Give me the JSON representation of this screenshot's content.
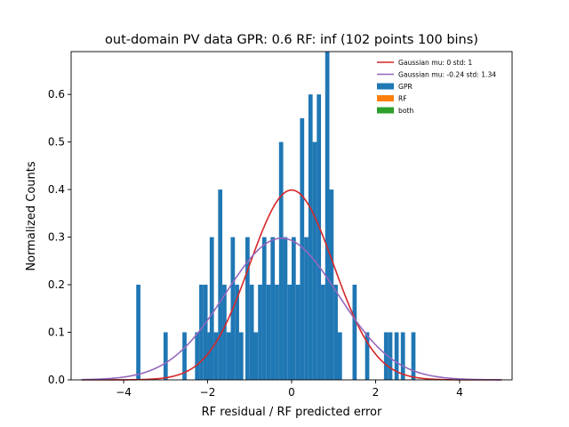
{
  "chart_data": {
    "type": "bar",
    "title": "out-domain PV data GPR: 0.6 RF: inf (102 points 100 bins)",
    "xlabel": "RF residual / RF predicted error",
    "ylabel": "Normalized Counts",
    "xlim": [
      -5.25,
      5.25
    ],
    "ylim": [
      0,
      0.69
    ],
    "xticks": [
      -4,
      -2,
      0,
      2,
      4
    ],
    "xtick_labels": [
      "−4",
      "−2",
      "0",
      "2",
      "4"
    ],
    "yticks": [
      0.0,
      0.1,
      0.2,
      0.3,
      0.4,
      0.5,
      0.6
    ],
    "ytick_labels": [
      "0.0",
      "0.1",
      "0.2",
      "0.3",
      "0.4",
      "0.5",
      "0.6"
    ],
    "grid": false,
    "legend_position": "top-right",
    "bin_width": 0.1,
    "series": [
      {
        "name": "GPR",
        "color": "#1f77b4",
        "kind": "histogram",
        "bins": [
          {
            "left": -3.7,
            "value": 0.2
          },
          {
            "left": -3.05,
            "value": 0.1
          },
          {
            "left": -2.6,
            "value": 0.1
          },
          {
            "left": -2.3,
            "value": 0.1
          },
          {
            "left": -2.2,
            "value": 0.2
          },
          {
            "left": -2.1,
            "value": 0.2
          },
          {
            "left": -2.0,
            "value": 0.1
          },
          {
            "left": -1.95,
            "value": 0.3
          },
          {
            "left": -1.85,
            "value": 0.1
          },
          {
            "left": -1.75,
            "value": 0.4
          },
          {
            "left": -1.65,
            "value": 0.2
          },
          {
            "left": -1.55,
            "value": 0.1
          },
          {
            "left": -1.45,
            "value": 0.3
          },
          {
            "left": -1.35,
            "value": 0.2
          },
          {
            "left": -1.25,
            "value": 0.1
          },
          {
            "left": -1.1,
            "value": 0.3
          },
          {
            "left": -1.0,
            "value": 0.2
          },
          {
            "left": -0.9,
            "value": 0.1
          },
          {
            "left": -0.8,
            "value": 0.2
          },
          {
            "left": -0.7,
            "value": 0.3
          },
          {
            "left": -0.6,
            "value": 0.2
          },
          {
            "left": -0.5,
            "value": 0.3
          },
          {
            "left": -0.4,
            "value": 0.2
          },
          {
            "left": -0.3,
            "value": 0.5
          },
          {
            "left": -0.2,
            "value": 0.3
          },
          {
            "left": -0.1,
            "value": 0.2
          },
          {
            "left": 0.0,
            "value": 0.3
          },
          {
            "left": 0.1,
            "value": 0.2
          },
          {
            "left": 0.2,
            "value": 0.55
          },
          {
            "left": 0.3,
            "value": 0.3
          },
          {
            "left": 0.4,
            "value": 0.6
          },
          {
            "left": 0.5,
            "value": 0.5
          },
          {
            "left": 0.6,
            "value": 0.6
          },
          {
            "left": 0.7,
            "value": 0.2
          },
          {
            "left": 0.8,
            "value": 0.69
          },
          {
            "left": 0.9,
            "value": 0.4
          },
          {
            "left": 1.0,
            "value": 0.2
          },
          {
            "left": 1.1,
            "value": 0.1
          },
          {
            "left": 1.45,
            "value": 0.2
          },
          {
            "left": 1.75,
            "value": 0.1
          },
          {
            "left": 2.2,
            "value": 0.1
          },
          {
            "left": 2.3,
            "value": 0.1
          },
          {
            "left": 2.45,
            "value": 0.1
          },
          {
            "left": 2.6,
            "value": 0.1
          },
          {
            "left": 2.85,
            "value": 0.1
          }
        ]
      },
      {
        "name": "RF",
        "color": "#ff7f0e",
        "kind": "histogram",
        "bins": []
      },
      {
        "name": "both",
        "color": "#2ca02c",
        "kind": "histogram",
        "bins": []
      },
      {
        "name": "Gaussian mu: 0 std: 1",
        "color": "#d62728",
        "kind": "gaussian",
        "mu": 0,
        "std": 1,
        "x_range": [
          -5,
          5
        ]
      },
      {
        "name": "Gaussian mu: -0.24 std: 1.34",
        "color": "#9467bd",
        "kind": "gaussian",
        "mu": -0.24,
        "std": 1.34,
        "x_range": [
          -5,
          5
        ]
      }
    ],
    "legend": [
      {
        "label": "Gaussian mu: 0 std: 1",
        "kind": "line",
        "color": "#d62728"
      },
      {
        "label": "Gaussian mu: -0.24 std: 1.34",
        "kind": "line",
        "color": "#9467bd"
      },
      {
        "label": "GPR",
        "kind": "patch",
        "color": "#1f77b4"
      },
      {
        "label": "RF",
        "kind": "patch",
        "color": "#ff7f0e"
      },
      {
        "label": "both",
        "kind": "patch",
        "color": "#2ca02c"
      }
    ]
  }
}
